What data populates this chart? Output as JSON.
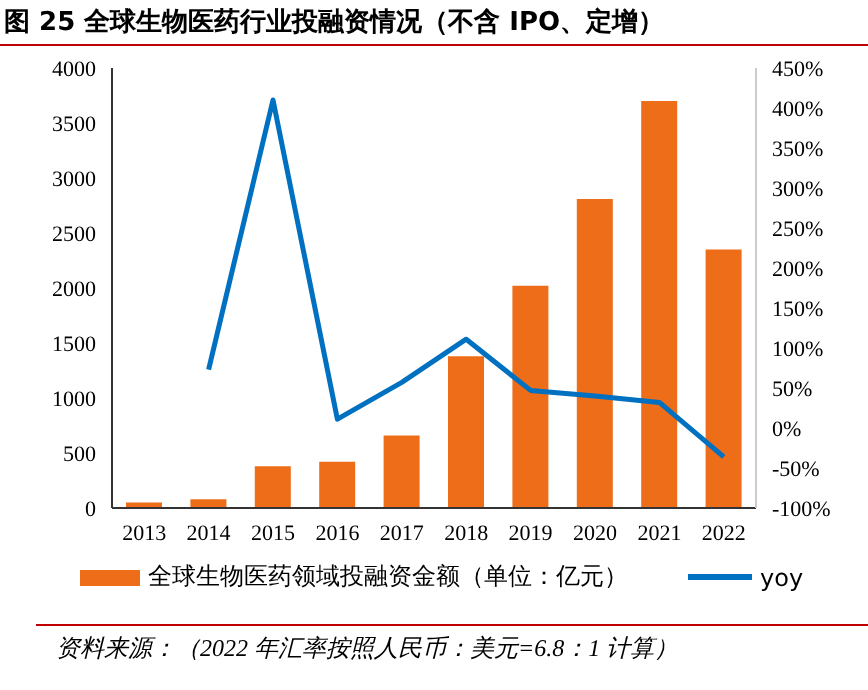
{
  "chart_data": {
    "type": "bar",
    "title": "图 25 全球生物医药行业投融资情况（不含 IPO、定增）",
    "categories": [
      "2013",
      "2014",
      "2015",
      "2016",
      "2017",
      "2018",
      "2019",
      "2020",
      "2021",
      "2022"
    ],
    "series": [
      {
        "name": "全球生物医药领域投融资金额（单位：亿元）",
        "color": "#ed6d18",
        "values": [
          50,
          80,
          380,
          420,
          660,
          1380,
          2020,
          2810,
          3700,
          2350
        ]
      },
      {
        "name": "yoy",
        "type": "line",
        "axis": "y2",
        "color": "#0070c0",
        "marker": "none",
        "values": [
          null,
          73,
          410,
          11,
          57,
          111,
          47,
          40,
          32,
          -36
        ]
      }
    ],
    "ylim": [
      0,
      4000
    ],
    "yticks": [
      0,
      500,
      1000,
      1500,
      2000,
      2500,
      3000,
      3500,
      4000
    ],
    "y2lim": [
      -100,
      450
    ],
    "y2ticks": [
      {
        "value": -100,
        "label": "-100%"
      },
      {
        "value": -50,
        "label": "-50%"
      },
      {
        "value": 0,
        "label": "0%"
      },
      {
        "value": 50,
        "label": "50%"
      },
      {
        "value": 100,
        "label": "100%"
      },
      {
        "value": 150,
        "label": "150%"
      },
      {
        "value": 200,
        "label": "200%"
      },
      {
        "value": 250,
        "label": "250%"
      },
      {
        "value": 300,
        "label": "300%"
      },
      {
        "value": 350,
        "label": "350%"
      },
      {
        "value": 400,
        "label": "400%"
      },
      {
        "value": 450,
        "label": "450%"
      }
    ],
    "grid": false,
    "legend": "bottom",
    "annotations": [
      "资料来源：（2022 年汇率按照人民币：美元=6.8：1 计算）"
    ]
  }
}
